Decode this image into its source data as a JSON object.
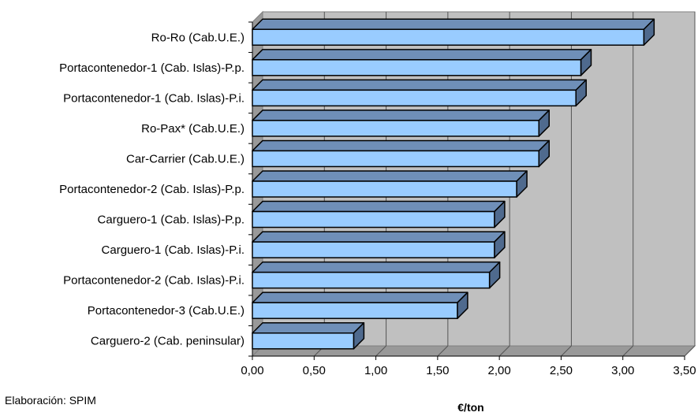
{
  "chart_data": {
    "type": "bar",
    "orientation": "horizontal",
    "style": "3d",
    "categories": [
      "Ro-Ro (Cab.U.E.)",
      "Portacontenedor-1 (Cab. Islas)-P.p.",
      "Portacontenedor-1 (Cab. Islas)-P.i.",
      "Ro-Pax* (Cab.U.E.)",
      "Car-Carrier (Cab.U.E.)",
      "Portacontenedor-2 (Cab. Islas)-P.p.",
      "Carguero-1 (Cab. Islas)-P.p.",
      "Carguero-1 (Cab. Islas)-P.i.",
      "Portacontenedor-2 (Cab. Islas)-P.i.",
      "Portacontenedor-3 (Cab.U.E.)",
      "Carguero-2 (Cab. peninsular)"
    ],
    "values": [
      3.17,
      2.66,
      2.62,
      2.32,
      2.32,
      2.14,
      1.96,
      1.96,
      1.92,
      1.66,
      0.82
    ],
    "xlabel": "€/ton",
    "xlim": [
      0,
      3.5
    ],
    "ticks": [
      "0,00",
      "0,50",
      "1,00",
      "1,50",
      "2,00",
      "2,50",
      "3,00",
      "3,50"
    ],
    "grid": true,
    "colors": {
      "bar_face": "#99ccff",
      "bar_top": "#6f8fb8",
      "bar_side": "#4f6a8e",
      "plot_wall": "#c0c0c0",
      "floor": "#999999",
      "gridline": "#555555"
    }
  },
  "source_note": "Elaboración: SPIM"
}
